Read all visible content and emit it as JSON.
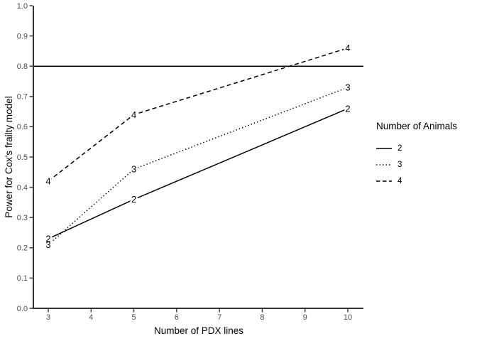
{
  "chart_data": {
    "type": "line",
    "title": "",
    "xlabel": "Number of PDX lines",
    "ylabel": "Power for Cox's frailty model",
    "x": [
      3,
      5,
      10
    ],
    "series": [
      {
        "name": "2",
        "linetype": "solid",
        "values": [
          0.23,
          0.36,
          0.66
        ]
      },
      {
        "name": "3",
        "linetype": "dotted",
        "values": [
          0.21,
          0.46,
          0.73
        ]
      },
      {
        "name": "4",
        "linetype": "dashed",
        "values": [
          0.42,
          0.64,
          0.86
        ]
      }
    ],
    "point_labels_show_series_name": true,
    "reference_line_y": 0.8,
    "xlim": [
      3,
      10
    ],
    "ylim": [
      0.0,
      1.0
    ],
    "xticks": [
      "3",
      "4",
      "5",
      "6",
      "7",
      "8",
      "9",
      "10"
    ],
    "yticks": [
      "0.0",
      "0.1",
      "0.2",
      "0.3",
      "0.4",
      "0.5",
      "0.6",
      "0.7",
      "0.8",
      "0.9",
      "1.0"
    ],
    "grid": false,
    "legend": {
      "title": "Number of Animals",
      "position": "right",
      "entries": [
        {
          "label": "2",
          "linetype": "solid"
        },
        {
          "label": "3",
          "linetype": "dotted"
        },
        {
          "label": "4",
          "linetype": "dashed"
        }
      ]
    }
  },
  "colors": {
    "line": "#000000",
    "axis": "#333333",
    "tick_label": "#4d4d4d",
    "title_text": "#000000",
    "background": "#ffffff"
  }
}
